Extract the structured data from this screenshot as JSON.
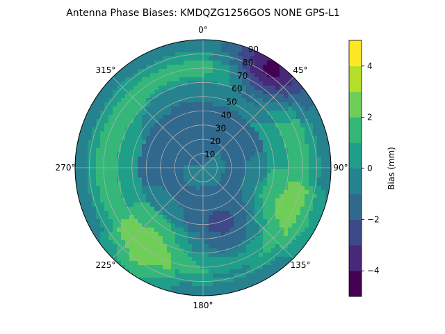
{
  "chart_data": {
    "type": "polar-contour",
    "title": "Antenna Phase Biases: KMDQZG1256GOS   NONE GPS-L1",
    "angular_ticks": [
      "0°",
      "45°",
      "90°",
      "135°",
      "180°",
      "225°",
      "270°",
      "315°"
    ],
    "radial_ticks": [
      "10",
      "20",
      "30",
      "40",
      "50",
      "60",
      "70",
      "80",
      "90"
    ],
    "radial_range": [
      0,
      90
    ],
    "angular_direction": "clockwise",
    "zero_location": "top",
    "grid": true,
    "colorbar": {
      "label": "Bias (mm)",
      "range": [
        -5,
        5
      ],
      "ticks": [
        "-4",
        "-2",
        "0",
        "2",
        "4"
      ],
      "levels": [
        -5,
        -4,
        -3,
        -2,
        -1,
        0,
        1,
        2,
        3,
        4,
        5
      ],
      "colors": [
        "#440154",
        "#482878",
        "#3e4989",
        "#31688e",
        "#26828e",
        "#1f9e89",
        "#35b779",
        "#6ece58",
        "#b5de2b",
        "#fde725"
      ]
    },
    "bias_rings": [
      {
        "elevation_max": 15,
        "bias": -0.5
      },
      {
        "elevation_max": 30,
        "bias": -1.5
      },
      {
        "elevation_max": 45,
        "bias": -1.2
      },
      {
        "elevation_max": 60,
        "bias": 0.5
      },
      {
        "elevation_max": 75,
        "bias": 1.6
      },
      {
        "elevation_max": 82,
        "bias": 0.3
      },
      {
        "elevation_max": 90,
        "bias": -0.6
      }
    ],
    "bias_features": [
      {
        "az": 120,
        "el": 62,
        "bias": 2.6
      },
      {
        "az": 215,
        "el": 68,
        "bias": 2.6
      },
      {
        "az": 160,
        "el": 42,
        "bias": -2.2
      },
      {
        "az": 35,
        "el": 85,
        "bias": -4.2
      },
      {
        "az": 340,
        "el": 30,
        "bias": -1.8
      }
    ]
  }
}
